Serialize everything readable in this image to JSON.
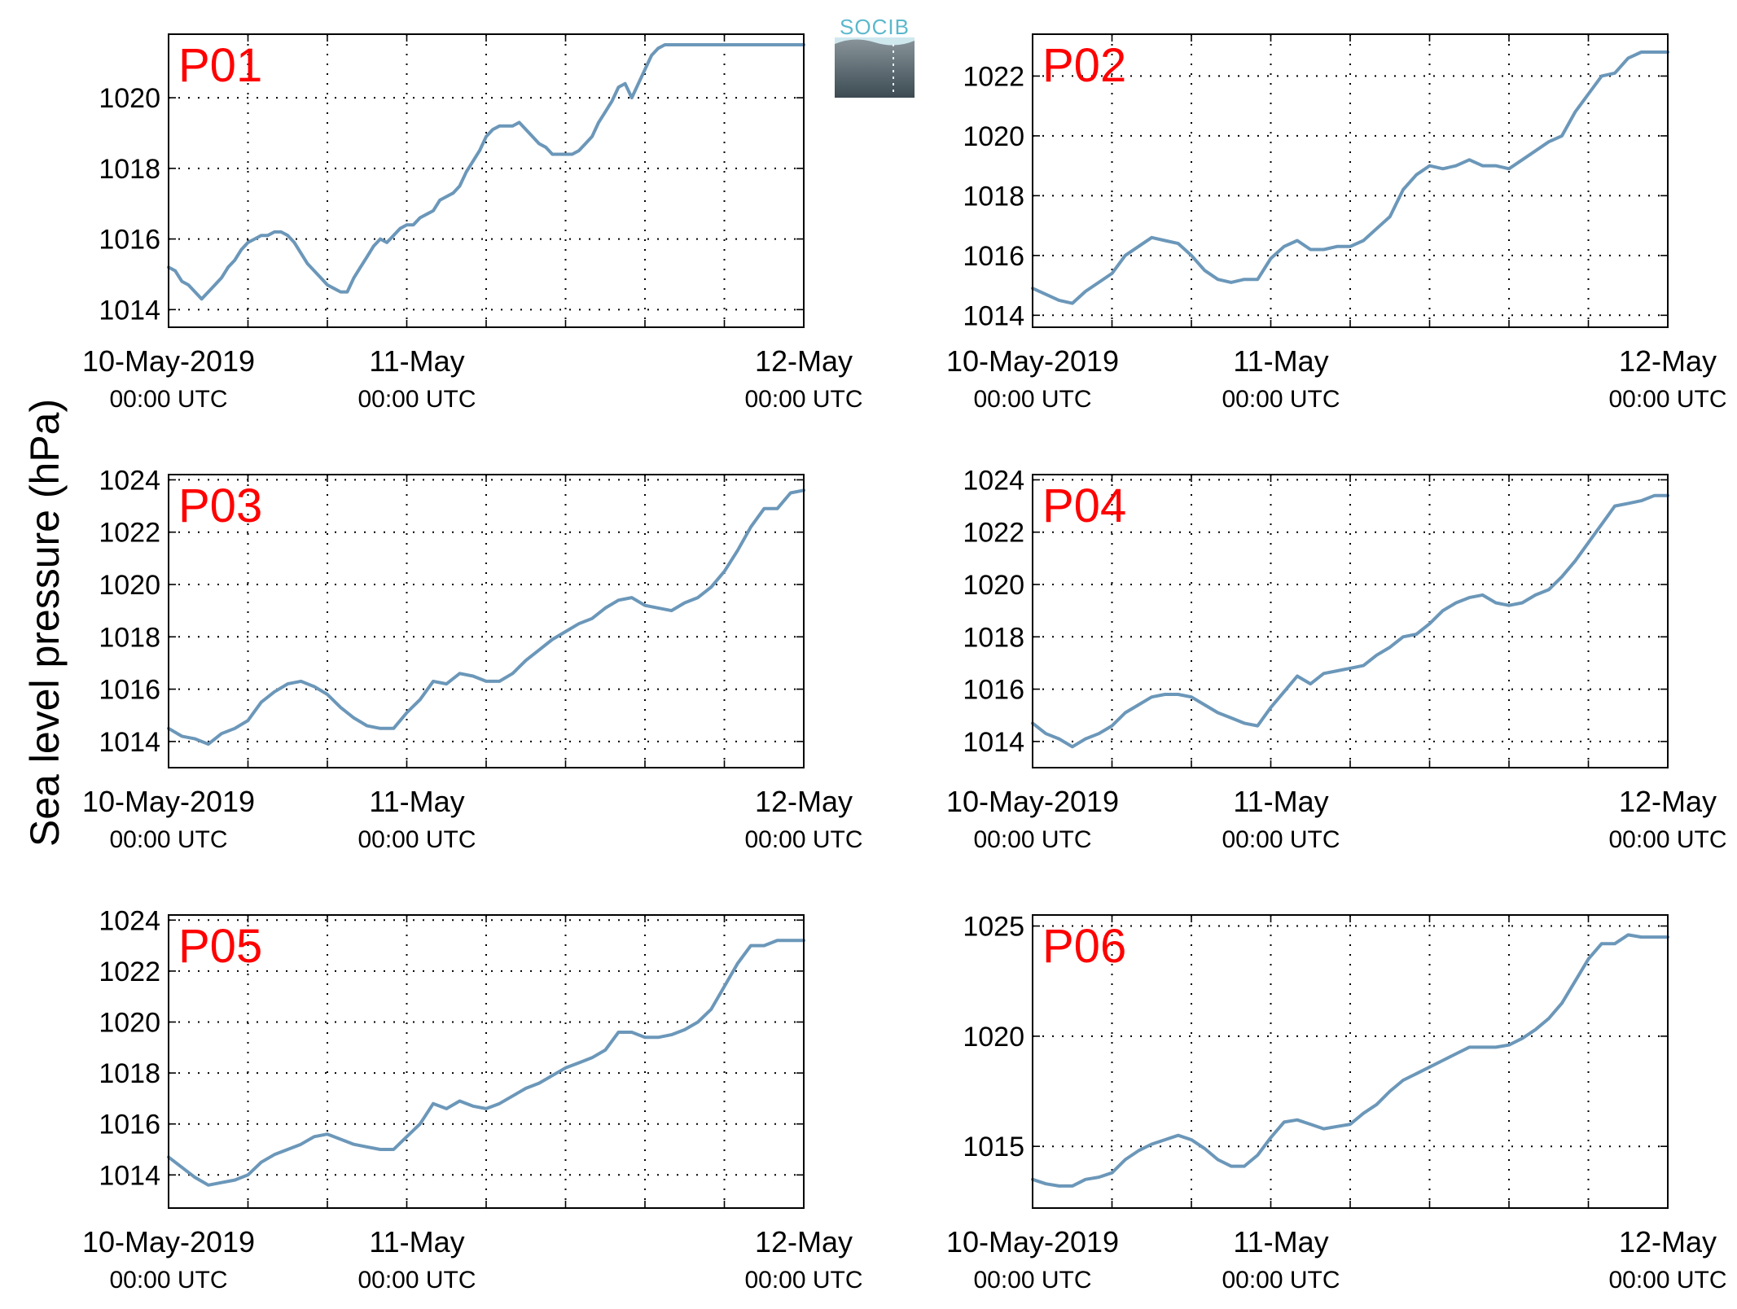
{
  "figure": {
    "ylabel": "Sea level pressure (hPa)",
    "logo": {
      "text": "SOCIB"
    },
    "colors": {
      "line": "#6b97b9",
      "panel_label": "#ff0000",
      "grid": "#000000",
      "logo_text": "#5bb8cc",
      "logo_top": "#8a969c",
      "logo_bottom": "#3c4a52"
    }
  },
  "chart_data": [
    {
      "type": "line",
      "label": "P01",
      "xticks": [
        {
          "top": "10-May-2019",
          "bottom": "00:00 UTC"
        },
        {
          "top": "11-May",
          "bottom": "00:00 UTC"
        },
        {
          "top": "12-May",
          "bottom": "00:00 UTC"
        }
      ],
      "xlim": [
        0,
        48
      ],
      "ylim": [
        1013.5,
        1021.8
      ],
      "yticks": [
        1014,
        1016,
        1018,
        1020
      ],
      "grid": true,
      "series": [
        {
          "x": [
            0,
            0.5,
            1,
            1.5,
            2,
            2.5,
            3,
            3.5,
            4,
            4.5,
            5,
            5.5,
            6,
            6.5,
            7,
            7.5,
            8,
            8.5,
            9,
            9.5,
            10,
            10.5,
            11,
            11.5,
            12,
            12.5,
            13,
            13.5,
            14,
            14.5,
            15,
            15.5,
            16,
            16.5,
            17,
            17.5,
            18,
            18.5,
            19,
            19.5,
            20,
            20.5,
            21,
            21.5,
            22,
            22.5,
            23,
            23.5,
            24,
            24.5,
            25,
            25.5,
            26,
            26.5,
            27,
            27.5,
            28,
            28.5,
            29,
            29.5,
            30,
            30.5,
            31,
            31.5,
            32,
            32.5,
            33,
            33.5,
            34,
            34.5,
            35,
            35.5,
            36,
            36.5,
            37,
            37.5,
            38,
            38.5,
            39,
            39.5,
            40,
            40.5,
            41,
            41.5,
            42,
            42.5,
            43,
            43.5,
            44,
            44.5,
            45,
            45.5,
            46,
            46.5,
            47,
            47.5,
            48
          ],
          "y": [
            1015.2,
            1015.1,
            1014.8,
            1014.7,
            1014.5,
            1014.3,
            1014.5,
            1014.7,
            1014.9,
            1015.2,
            1015.4,
            1015.7,
            1015.9,
            1016.0,
            1016.1,
            1016.1,
            1016.2,
            1016.2,
            1016.1,
            1015.9,
            1015.6,
            1015.3,
            1015.1,
            1014.9,
            1014.7,
            1014.6,
            1014.5,
            1014.5,
            1014.9,
            1015.2,
            1015.5,
            1015.8,
            1016.0,
            1015.9,
            1016.1,
            1016.3,
            1016.4,
            1016.4,
            1016.6,
            1016.7,
            1016.8,
            1017.1,
            1017.2,
            1017.3,
            1017.5,
            1017.9,
            1018.2,
            1018.5,
            1018.9,
            1019.1,
            1019.2,
            1019.2,
            1019.2,
            1019.3,
            1019.1,
            1018.9,
            1018.7,
            1018.6,
            1018.4,
            1018.4,
            1018.4,
            1018.4,
            1018.5,
            1018.7,
            1018.9,
            1019.3,
            1019.6,
            1019.9,
            1020.3,
            1020.4,
            1020.0,
            1020.4,
            1020.8,
            1021.2,
            1021.4,
            1021.5,
            1021.5,
            1021.5,
            1021.5,
            1021.5,
            1021.5,
            1021.5,
            1021.5,
            1021.5,
            1021.5,
            1021.5,
            1021.5,
            1021.5,
            1021.5,
            1021.5,
            1021.5,
            1021.5,
            1021.5,
            1021.5,
            1021.5,
            1021.5,
            1021.5
          ]
        }
      ]
    },
    {
      "type": "line",
      "label": "P02",
      "xticks": [
        {
          "top": "10-May-2019",
          "bottom": "00:00 UTC"
        },
        {
          "top": "11-May",
          "bottom": "00:00 UTC"
        },
        {
          "top": "12-May",
          "bottom": "00:00 UTC"
        }
      ],
      "xlim": [
        0,
        48
      ],
      "ylim": [
        1013.6,
        1023.4
      ],
      "yticks": [
        1014,
        1016,
        1018,
        1020,
        1022
      ],
      "grid": true,
      "series": [
        {
          "x": [
            0,
            1,
            2,
            3,
            4,
            5,
            6,
            7,
            8,
            9,
            10,
            11,
            12,
            13,
            14,
            15,
            16,
            17,
            18,
            19,
            20,
            21,
            22,
            23,
            24,
            25,
            26,
            27,
            28,
            29,
            30,
            31,
            32,
            33,
            34,
            35,
            36,
            37,
            38,
            39,
            40,
            41,
            42,
            43,
            44,
            45,
            46,
            47,
            48
          ],
          "y": [
            1014.9,
            1014.7,
            1014.5,
            1014.4,
            1014.8,
            1015.1,
            1015.4,
            1016.0,
            1016.3,
            1016.6,
            1016.5,
            1016.4,
            1016.0,
            1015.5,
            1015.2,
            1015.1,
            1015.2,
            1015.2,
            1015.9,
            1016.3,
            1016.5,
            1016.2,
            1016.2,
            1016.3,
            1016.3,
            1016.5,
            1016.9,
            1017.3,
            1018.2,
            1018.7,
            1019.0,
            1018.9,
            1019.0,
            1019.2,
            1019.0,
            1019.0,
            1018.9,
            1019.2,
            1019.5,
            1019.8,
            1020.0,
            1020.8,
            1021.4,
            1022.0,
            1022.1,
            1022.6,
            1022.8,
            1022.8,
            1022.8
          ]
        }
      ]
    },
    {
      "type": "line",
      "label": "P03",
      "xticks": [
        {
          "top": "10-May-2019",
          "bottom": "00:00 UTC"
        },
        {
          "top": "11-May",
          "bottom": "00:00 UTC"
        },
        {
          "top": "12-May",
          "bottom": "00:00 UTC"
        }
      ],
      "xlim": [
        0,
        48
      ],
      "ylim": [
        1013.0,
        1024.2
      ],
      "yticks": [
        1014,
        1016,
        1018,
        1020,
        1022,
        1024
      ],
      "grid": true,
      "series": [
        {
          "x": [
            0,
            1,
            2,
            3,
            4,
            5,
            6,
            7,
            8,
            9,
            10,
            11,
            12,
            13,
            14,
            15,
            16,
            17,
            18,
            19,
            20,
            21,
            22,
            23,
            24,
            25,
            26,
            27,
            28,
            29,
            30,
            31,
            32,
            33,
            34,
            35,
            36,
            37,
            38,
            39,
            40,
            41,
            42,
            43,
            44,
            45,
            46,
            47,
            48
          ],
          "y": [
            1014.5,
            1014.2,
            1014.1,
            1013.9,
            1014.3,
            1014.5,
            1014.8,
            1015.5,
            1015.9,
            1016.2,
            1016.3,
            1016.1,
            1015.8,
            1015.3,
            1014.9,
            1014.6,
            1014.5,
            1014.5,
            1015.1,
            1015.6,
            1016.3,
            1016.2,
            1016.6,
            1016.5,
            1016.3,
            1016.3,
            1016.6,
            1017.1,
            1017.5,
            1017.9,
            1018.2,
            1018.5,
            1018.7,
            1019.1,
            1019.4,
            1019.5,
            1019.2,
            1019.1,
            1019.0,
            1019.3,
            1019.5,
            1019.9,
            1020.5,
            1021.3,
            1022.2,
            1022.9,
            1022.9,
            1023.5,
            1023.6
          ]
        }
      ]
    },
    {
      "type": "line",
      "label": "P04",
      "xticks": [
        {
          "top": "10-May-2019",
          "bottom": "00:00 UTC"
        },
        {
          "top": "11-May",
          "bottom": "00:00 UTC"
        },
        {
          "top": "12-May",
          "bottom": "00:00 UTC"
        }
      ],
      "xlim": [
        0,
        48
      ],
      "ylim": [
        1013.0,
        1024.2
      ],
      "yticks": [
        1014,
        1016,
        1018,
        1020,
        1022,
        1024
      ],
      "grid": true,
      "series": [
        {
          "x": [
            0,
            1,
            2,
            3,
            4,
            5,
            6,
            7,
            8,
            9,
            10,
            11,
            12,
            13,
            14,
            15,
            16,
            17,
            18,
            19,
            20,
            21,
            22,
            23,
            24,
            25,
            26,
            27,
            28,
            29,
            30,
            31,
            32,
            33,
            34,
            35,
            36,
            37,
            38,
            39,
            40,
            41,
            42,
            43,
            44,
            45,
            46,
            47,
            48
          ],
          "y": [
            1014.7,
            1014.3,
            1014.1,
            1013.8,
            1014.1,
            1014.3,
            1014.6,
            1015.1,
            1015.4,
            1015.7,
            1015.8,
            1015.8,
            1015.7,
            1015.4,
            1015.1,
            1014.9,
            1014.7,
            1014.6,
            1015.3,
            1015.9,
            1016.5,
            1016.2,
            1016.6,
            1016.7,
            1016.8,
            1016.9,
            1017.3,
            1017.6,
            1018.0,
            1018.1,
            1018.5,
            1019.0,
            1019.3,
            1019.5,
            1019.6,
            1019.3,
            1019.2,
            1019.3,
            1019.6,
            1019.8,
            1020.3,
            1020.9,
            1021.6,
            1022.3,
            1023.0,
            1023.1,
            1023.2,
            1023.4,
            1023.4
          ]
        }
      ]
    },
    {
      "type": "line",
      "label": "P05",
      "xticks": [
        {
          "top": "10-May-2019",
          "bottom": "00:00 UTC"
        },
        {
          "top": "11-May",
          "bottom": "00:00 UTC"
        },
        {
          "top": "12-May",
          "bottom": "00:00 UTC"
        }
      ],
      "xlim": [
        0,
        48
      ],
      "ylim": [
        1012.7,
        1024.2
      ],
      "yticks": [
        1014,
        1016,
        1018,
        1020,
        1022,
        1024
      ],
      "grid": true,
      "series": [
        {
          "x": [
            0,
            1,
            2,
            3,
            4,
            5,
            6,
            7,
            8,
            9,
            10,
            11,
            12,
            13,
            14,
            15,
            16,
            17,
            18,
            19,
            20,
            21,
            22,
            23,
            24,
            25,
            26,
            27,
            28,
            29,
            30,
            31,
            32,
            33,
            34,
            35,
            36,
            37,
            38,
            39,
            40,
            41,
            42,
            43,
            44,
            45,
            46,
            47,
            48
          ],
          "y": [
            1014.7,
            1014.3,
            1013.9,
            1013.6,
            1013.7,
            1013.8,
            1014.0,
            1014.5,
            1014.8,
            1015.0,
            1015.2,
            1015.5,
            1015.6,
            1015.4,
            1015.2,
            1015.1,
            1015.0,
            1015.0,
            1015.5,
            1016.0,
            1016.8,
            1016.6,
            1016.9,
            1016.7,
            1016.6,
            1016.8,
            1017.1,
            1017.4,
            1017.6,
            1017.9,
            1018.2,
            1018.4,
            1018.6,
            1018.9,
            1019.6,
            1019.6,
            1019.4,
            1019.4,
            1019.5,
            1019.7,
            1020.0,
            1020.5,
            1021.4,
            1022.3,
            1023.0,
            1023.0,
            1023.2,
            1023.2,
            1023.2
          ]
        }
      ]
    },
    {
      "type": "line",
      "label": "P06",
      "xticks": [
        {
          "top": "10-May-2019",
          "bottom": "00:00 UTC"
        },
        {
          "top": "11-May",
          "bottom": "00:00 UTC"
        },
        {
          "top": "12-May",
          "bottom": "00:00 UTC"
        }
      ],
      "xlim": [
        0,
        48
      ],
      "ylim": [
        1012.2,
        1025.5
      ],
      "yticks": [
        1015,
        1020,
        1025
      ],
      "grid": true,
      "series": [
        {
          "x": [
            0,
            1,
            2,
            3,
            4,
            5,
            6,
            7,
            8,
            9,
            10,
            11,
            12,
            13,
            14,
            15,
            16,
            17,
            18,
            19,
            20,
            21,
            22,
            23,
            24,
            25,
            26,
            27,
            28,
            29,
            30,
            31,
            32,
            33,
            34,
            35,
            36,
            37,
            38,
            39,
            40,
            41,
            42,
            43,
            44,
            45,
            46,
            47,
            48
          ],
          "y": [
            1013.5,
            1013.3,
            1013.2,
            1013.2,
            1013.5,
            1013.6,
            1013.8,
            1014.4,
            1014.8,
            1015.1,
            1015.3,
            1015.5,
            1015.3,
            1014.9,
            1014.4,
            1014.1,
            1014.1,
            1014.6,
            1015.4,
            1016.1,
            1016.2,
            1016.0,
            1015.8,
            1015.9,
            1016.0,
            1016.5,
            1016.9,
            1017.5,
            1018.0,
            1018.3,
            1018.6,
            1018.9,
            1019.2,
            1019.5,
            1019.5,
            1019.5,
            1019.6,
            1019.9,
            1020.3,
            1020.8,
            1021.5,
            1022.5,
            1023.5,
            1024.2,
            1024.2,
            1024.6,
            1024.5,
            1024.5,
            1024.5
          ]
        }
      ]
    }
  ]
}
